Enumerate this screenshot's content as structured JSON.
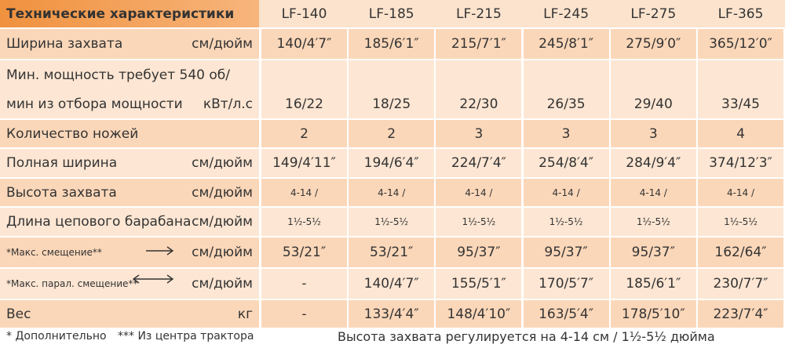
{
  "table": {
    "header": {
      "title": "Технические характеристики",
      "models": [
        "LF-140",
        "LF-185",
        "LF-215",
        "LF-245",
        "LF-275",
        "LF-365"
      ]
    },
    "rows": [
      {
        "label": "Ширина захвата",
        "unit": "см/дюйм",
        "values": [
          "140/4′7″",
          "185/6′1″",
          "215/7′1″",
          "245/8′1″",
          "275/9′0″",
          "365/12′0″"
        ]
      },
      {
        "label_lines": [
          "Мин. мощность требует 540 об/",
          "мин из отбора мощности"
        ],
        "unit": "кВт/л.с",
        "values": [
          "16/22",
          "18/25",
          "22/30",
          "26/35",
          "29/40",
          "33/45"
        ]
      },
      {
        "label": "Количество ножей",
        "values": [
          "2",
          "2",
          "3",
          "3",
          "3",
          "4"
        ]
      },
      {
        "label": "Полная ширина",
        "unit": "см/дюйм",
        "values": [
          "149/4′11″",
          "194/6′4″",
          "224/7′4″",
          "254/8′4″",
          "284/9′4″",
          "374/12′3″"
        ]
      },
      {
        "label": "Высота захвата",
        "unit": "см/дюйм",
        "values": [
          "4-14 /",
          "4-14 /",
          "4-14 /",
          "4-14 /",
          "4-14 /",
          "4-14 /"
        ]
      },
      {
        "label": "Длина цепового барабана",
        "unit": "см/дюйм",
        "values": [
          "1½-5½",
          "1½-5½",
          "1½-5½",
          "1½-5½",
          "1½-5½",
          "1½-5½"
        ]
      },
      {
        "label": "*Макс. смещение**",
        "unit": "см/дюйм",
        "values": [
          "53/21″",
          "53/21″",
          "95/37″",
          "95/37″",
          "95/37″",
          "162/64″"
        ]
      },
      {
        "label": "*Макс. парал. смещение**",
        "unit": "см/дюйм",
        "values": [
          "-",
          "140/4′7″",
          "155/5′1″",
          "170/5′7″",
          "185/6′1″",
          "230/7′7″"
        ]
      },
      {
        "label": "Вес",
        "unit": "кг",
        "values": [
          "-",
          "133/4′4″",
          "148/4′10″",
          "163/5′4″",
          "178/5′10″",
          "223/7′4″"
        ]
      }
    ]
  },
  "footer": {
    "notes": [
      "* Дополнительно",
      "*** Из центра трактора"
    ],
    "text": "Высота захвата регулируется на 4-14 см / 1½-5½ дюйма"
  }
}
